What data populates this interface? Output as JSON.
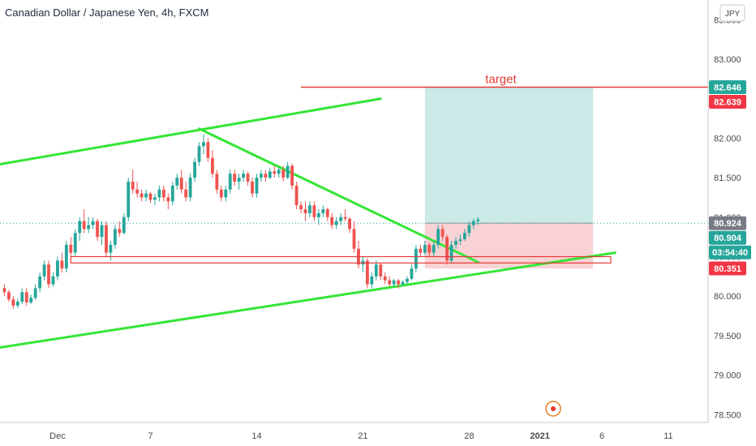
{
  "chart_data": {
    "type": "candlestick",
    "title": "Canadian Dollar / Japanese Yen, 4h, FXCM",
    "currency": "JPY",
    "y_ticks": [
      "83.500",
      "83.000",
      "82.500",
      "82.000",
      "81.500",
      "81.000",
      "80.500",
      "80.000",
      "79.500",
      "79.000",
      "78.500"
    ],
    "y_tick_values": [
      83.5,
      83.0,
      82.5,
      82.0,
      81.5,
      81.0,
      80.5,
      80.0,
      79.5,
      79.0,
      78.5
    ],
    "ylim": [
      78.4,
      83.75
    ],
    "x_ticks": [
      {
        "label": "Dec",
        "bar": 12,
        "bold": false
      },
      {
        "label": "7",
        "bar": 33,
        "bold": false
      },
      {
        "label": "14",
        "bar": 57,
        "bold": false
      },
      {
        "label": "21",
        "bar": 81,
        "bold": false
      },
      {
        "label": "28",
        "bar": 105,
        "bold": false
      },
      {
        "label": "2021",
        "bar": 121,
        "bold": true
      },
      {
        "label": "6",
        "bar": 135,
        "bold": false
      },
      {
        "label": "11",
        "bar": 150,
        "bold": false
      }
    ],
    "xlim": [
      -1,
      159
    ],
    "ohlc": [
      [
        80.1,
        80.15,
        80.0,
        80.05
      ],
      [
        80.05,
        80.08,
        79.93,
        79.96
      ],
      [
        79.96,
        80.0,
        79.84,
        79.88
      ],
      [
        79.88,
        79.97,
        79.85,
        79.93
      ],
      [
        79.93,
        80.1,
        79.9,
        80.05
      ],
      [
        80.05,
        80.1,
        79.88,
        79.92
      ],
      [
        79.92,
        80.02,
        79.9,
        79.98
      ],
      [
        79.98,
        80.15,
        79.95,
        80.1
      ],
      [
        80.1,
        80.3,
        80.05,
        80.25
      ],
      [
        80.25,
        80.45,
        80.2,
        80.4
      ],
      [
        80.4,
        80.45,
        80.1,
        80.15
      ],
      [
        80.15,
        80.3,
        80.12,
        80.25
      ],
      [
        80.25,
        80.5,
        80.2,
        80.45
      ],
      [
        80.45,
        80.55,
        80.3,
        80.35
      ],
      [
        80.35,
        80.7,
        80.3,
        80.65
      ],
      [
        80.65,
        80.75,
        80.5,
        80.55
      ],
      [
        80.55,
        80.85,
        80.5,
        80.8
      ],
      [
        80.8,
        81.0,
        80.7,
        80.95
      ],
      [
        80.95,
        81.1,
        80.8,
        80.85
      ],
      [
        80.85,
        81.0,
        80.8,
        80.9
      ],
      [
        80.9,
        81.0,
        80.85,
        80.95
      ],
      [
        80.95,
        80.98,
        80.7,
        80.75
      ],
      [
        80.75,
        80.95,
        80.65,
        80.9
      ],
      [
        80.9,
        80.95,
        80.5,
        80.55
      ],
      [
        80.55,
        80.7,
        80.45,
        80.65
      ],
      [
        80.65,
        80.9,
        80.6,
        80.85
      ],
      [
        80.85,
        80.95,
        80.75,
        80.8
      ],
      [
        80.8,
        81.05,
        80.78,
        81.0
      ],
      [
        81.0,
        81.5,
        80.95,
        81.45
      ],
      [
        81.45,
        81.6,
        81.3,
        81.35
      ],
      [
        81.35,
        81.45,
        81.25,
        81.3
      ],
      [
        81.3,
        81.35,
        81.2,
        81.25
      ],
      [
        81.25,
        81.35,
        81.2,
        81.3
      ],
      [
        81.3,
        81.32,
        81.18,
        81.22
      ],
      [
        81.22,
        81.3,
        81.15,
        81.25
      ],
      [
        81.25,
        81.4,
        81.2,
        81.35
      ],
      [
        81.35,
        81.4,
        81.2,
        81.25
      ],
      [
        81.25,
        81.3,
        81.1,
        81.2
      ],
      [
        81.2,
        81.45,
        81.15,
        81.4
      ],
      [
        81.4,
        81.55,
        81.35,
        81.5
      ],
      [
        81.5,
        81.6,
        81.3,
        81.35
      ],
      [
        81.35,
        81.45,
        81.2,
        81.25
      ],
      [
        81.25,
        81.55,
        81.2,
        81.5
      ],
      [
        81.5,
        81.75,
        81.45,
        81.7
      ],
      [
        81.7,
        81.95,
        81.65,
        81.9
      ],
      [
        81.9,
        82.05,
        81.8,
        81.95
      ],
      [
        81.95,
        82.0,
        81.7,
        81.75
      ],
      [
        81.75,
        81.85,
        81.5,
        81.55
      ],
      [
        81.55,
        81.6,
        81.3,
        81.35
      ],
      [
        81.35,
        81.4,
        81.2,
        81.25
      ],
      [
        81.25,
        81.4,
        81.2,
        81.35
      ],
      [
        81.35,
        81.6,
        81.3,
        81.55
      ],
      [
        81.55,
        81.6,
        81.4,
        81.45
      ],
      [
        81.45,
        81.55,
        81.35,
        81.5
      ],
      [
        81.5,
        81.6,
        81.45,
        81.55
      ],
      [
        81.55,
        81.58,
        81.4,
        81.45
      ],
      [
        81.45,
        81.5,
        81.25,
        81.3
      ],
      [
        81.3,
        81.55,
        81.25,
        81.5
      ],
      [
        81.5,
        81.6,
        81.45,
        81.55
      ],
      [
        81.55,
        81.6,
        81.45,
        81.5
      ],
      [
        81.5,
        81.62,
        81.48,
        81.58
      ],
      [
        81.58,
        81.65,
        81.5,
        81.55
      ],
      [
        81.55,
        81.62,
        81.5,
        81.6
      ],
      [
        81.6,
        81.65,
        81.45,
        81.5
      ],
      [
        81.5,
        81.7,
        81.48,
        81.65
      ],
      [
        81.65,
        81.68,
        81.35,
        81.4
      ],
      [
        81.4,
        81.45,
        81.1,
        81.15
      ],
      [
        81.15,
        81.2,
        81.05,
        81.1
      ],
      [
        81.1,
        81.2,
        80.95,
        81.05
      ],
      [
        81.05,
        81.2,
        81.0,
        81.15
      ],
      [
        81.15,
        81.2,
        80.95,
        81.0
      ],
      [
        81.0,
        81.1,
        80.9,
        81.05
      ],
      [
        81.05,
        81.15,
        81.0,
        81.1
      ],
      [
        81.1,
        81.12,
        80.95,
        81.0
      ],
      [
        81.0,
        81.05,
        80.85,
        80.9
      ],
      [
        80.9,
        81.0,
        80.85,
        80.95
      ],
      [
        80.95,
        81.05,
        80.9,
        81.0
      ],
      [
        81.0,
        81.1,
        80.95,
        80.98
      ],
      [
        80.98,
        81.0,
        80.8,
        80.85
      ],
      [
        80.85,
        80.95,
        80.55,
        80.6
      ],
      [
        80.6,
        80.7,
        80.35,
        80.4
      ],
      [
        80.4,
        80.5,
        80.3,
        80.45
      ],
      [
        80.45,
        80.48,
        80.1,
        80.15
      ],
      [
        80.15,
        80.3,
        80.1,
        80.25
      ],
      [
        80.25,
        80.45,
        80.2,
        80.4
      ],
      [
        80.4,
        80.42,
        80.2,
        80.25
      ],
      [
        80.25,
        80.3,
        80.15,
        80.2
      ],
      [
        80.2,
        80.25,
        80.12,
        80.15
      ],
      [
        80.15,
        80.22,
        80.12,
        80.2
      ],
      [
        80.2,
        80.22,
        80.1,
        80.15
      ],
      [
        80.15,
        80.2,
        80.14,
        80.18
      ],
      [
        80.18,
        80.25,
        80.15,
        80.22
      ],
      [
        80.22,
        80.4,
        80.2,
        80.35
      ],
      [
        80.35,
        80.65,
        80.3,
        80.6
      ],
      [
        80.6,
        80.65,
        80.5,
        80.55
      ],
      [
        80.55,
        80.7,
        80.52,
        80.65
      ],
      [
        80.65,
        80.68,
        80.5,
        80.55
      ],
      [
        80.55,
        80.7,
        80.5,
        80.65
      ],
      [
        80.65,
        80.9,
        80.6,
        80.85
      ],
      [
        80.85,
        80.9,
        80.7,
        80.75
      ],
      [
        80.75,
        80.78,
        80.4,
        80.45
      ],
      [
        80.45,
        80.7,
        80.42,
        80.65
      ],
      [
        80.65,
        80.75,
        80.6,
        80.7
      ],
      [
        80.7,
        80.78,
        80.65,
        80.72
      ],
      [
        80.72,
        80.85,
        80.7,
        80.8
      ],
      [
        80.8,
        80.95,
        80.75,
        80.9
      ],
      [
        80.9,
        80.98,
        80.85,
        80.95
      ],
      [
        80.95,
        81.0,
        80.9,
        80.97
      ]
    ],
    "last_price": 80.924,
    "countdown": "03:54:40",
    "price_tags": [
      {
        "label": "82.646",
        "value": 82.646,
        "color": "#26a69a"
      },
      {
        "label": "82.639",
        "value": 82.639,
        "color": "#f23645"
      },
      {
        "label": "80.924",
        "value": 80.924,
        "color": "#787b86"
      },
      {
        "label": "80.904",
        "value": 80.904,
        "color": "#26a69a"
      },
      {
        "label": "80.351",
        "value": 80.351,
        "color": "#f23645"
      }
    ],
    "annotations": {
      "target_label": "target",
      "target_line": {
        "x1": 67,
        "x2": 159,
        "y": 82.646
      },
      "channel_upper": {
        "x1": -1,
        "y1": 81.67,
        "x2": 85,
        "y2": 82.5
      },
      "channel_lower": {
        "x1": -1,
        "y1": 79.35,
        "x2": 138,
        "y2": 80.55
      },
      "wedge_top": {
        "x1": 44,
        "y1": 82.12,
        "x2": 107,
        "y2": 80.43
      },
      "support_zone": {
        "x1": 15,
        "x2": 137,
        "y1": 80.42,
        "y2": 80.5
      },
      "position": {
        "x1": 95,
        "x2": 133,
        "entry": 80.924,
        "target": 82.646,
        "stop": 80.351
      }
    },
    "colors": {
      "up": "#26a69a",
      "down": "#ef5350",
      "line": "#33e635",
      "zone": "#e53935",
      "profit": "#cbe9e6",
      "loss": "#f8d2d4",
      "event": "#e67e22"
    },
    "event_marker_bar": 124
  }
}
